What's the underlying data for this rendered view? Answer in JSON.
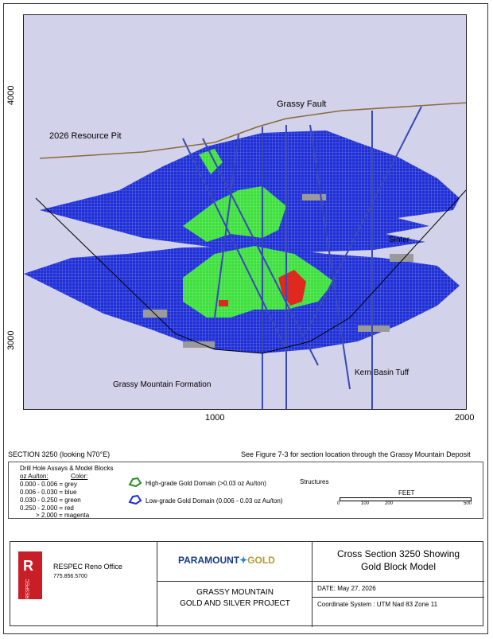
{
  "map": {
    "y_ticks": [
      "4000",
      "3000"
    ],
    "x_ticks": [
      "1000",
      "2000"
    ],
    "labels": {
      "grassy_fault": "Grassy Fault",
      "resource_pit": "2026 Resource Pit",
      "sinter": "Sinter",
      "kern_basin_tuff": "Kern Basin Tuff",
      "grassy_mountain_formation": "Grassy Mountain Formation"
    }
  },
  "section": {
    "title": "SECTION 3250 (looking N70°E)",
    "figure_ref": "See Figure 7-3 for section location through the Grassy Mountain Deposit"
  },
  "legend": {
    "drill_title": "Drill Hole Assays & Model Blocks",
    "col_oz": "oz Au/ton:",
    "col_color": "Color:",
    "rows": [
      {
        "range": "0.000 - 0.006",
        "color": "= grey"
      },
      {
        "range": "0.006 - 0.030",
        "color": "= blue"
      },
      {
        "range": "0.030 - 0.250",
        "color": "= green"
      },
      {
        "range": "0.250 - 2.000",
        "color": "= red"
      },
      {
        "range": "> 2.000",
        "color": "= magenta"
      }
    ],
    "high_grade": "High-grade Gold Domain (>0.03 oz Au/ton)",
    "low_grade": "Low-grade Gold Domain (0.006 - 0.03 oz Au/ton)",
    "structures": "Structures",
    "scale_title": "FEET",
    "scale_ticks": [
      "0",
      "100",
      "200",
      "500"
    ]
  },
  "title_block": {
    "logo_text": "RESPEC",
    "office": "RESPEC Reno Office",
    "phone": "775.856.5700",
    "company_left": "PARAMOUNT",
    "company_right": "GOLD",
    "project_line1": "GRASSY MOUNTAIN",
    "project_line2": "GOLD AND SILVER PROJECT",
    "title_line1": "Cross Section 3250 Showing",
    "title_line2": "Gold Block Model",
    "date": "DATE:  May 27, 2026",
    "coords": "Coordinate System : UTM Nad 83 Zone 11"
  },
  "colors": {
    "blue": "#1f2fd6",
    "green": "#3ee03e",
    "red": "#e0281e",
    "grey": "#9a9a9a",
    "bg": "#d2d2ea",
    "topo": "#8a6a3a"
  }
}
